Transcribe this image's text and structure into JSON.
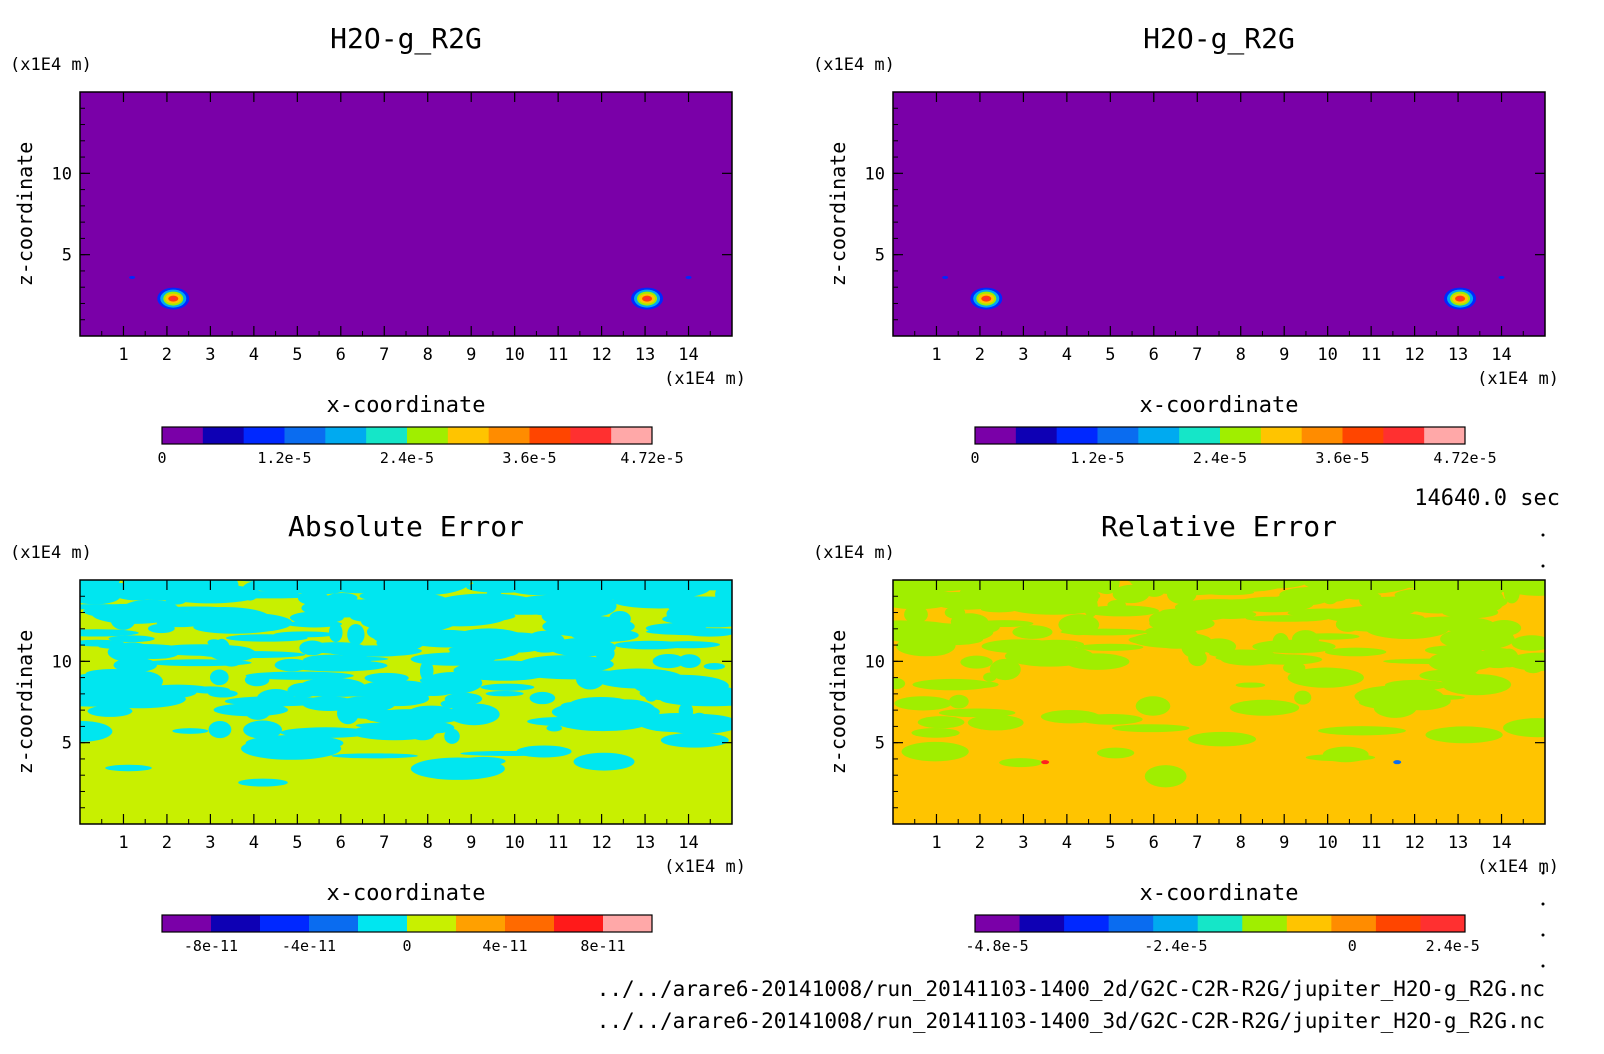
{
  "panels": [
    {
      "title": "H2O-g_R2G",
      "type": "heatmap",
      "kind": "field",
      "xlabel": "x-coordinate",
      "ylabel": "z-coordinate",
      "x_unit": "(x1E4 m)",
      "y_unit": "(x1E4 m)",
      "x_ticks": [
        "1",
        "2",
        "3",
        "4",
        "5",
        "6",
        "7",
        "8",
        "9",
        "10",
        "11",
        "12",
        "13",
        "14"
      ],
      "y_ticks": [
        "5",
        "10"
      ],
      "background_color": "#7a00a8",
      "colorbar": {
        "colors": [
          "#7a00a8",
          "#0e00b4",
          "#0028ff",
          "#0a6cf0",
          "#00aaf0",
          "#15e6c8",
          "#a0ee00",
          "#ffc400",
          "#ff8c00",
          "#ff4500",
          "#ff3030",
          "#ffa8a8"
        ],
        "labels": [
          "0",
          "1.2e-5",
          "2.4e-5",
          "3.6e-5",
          "4.72e-5"
        ],
        "label_positions": [
          0,
          0.25,
          0.5,
          0.75,
          1.0
        ]
      }
    },
    {
      "title": "H2O-g_R2G",
      "type": "heatmap",
      "kind": "field",
      "xlabel": "x-coordinate",
      "ylabel": "z-coordinate",
      "x_unit": "(x1E4 m)",
      "y_unit": "(x1E4 m)",
      "x_ticks": [
        "1",
        "2",
        "3",
        "4",
        "5",
        "6",
        "7",
        "8",
        "9",
        "10",
        "11",
        "12",
        "13",
        "14"
      ],
      "y_ticks": [
        "5",
        "10"
      ],
      "background_color": "#7a00a8",
      "colorbar": {
        "colors": [
          "#7a00a8",
          "#0e00b4",
          "#0028ff",
          "#0a6cf0",
          "#00aaf0",
          "#15e6c8",
          "#a0ee00",
          "#ffc400",
          "#ff8c00",
          "#ff4500",
          "#ff3030",
          "#ffa8a8"
        ],
        "labels": [
          "0",
          "1.2e-5",
          "2.4e-5",
          "3.6e-5",
          "4.72e-5"
        ],
        "label_positions": [
          0,
          0.25,
          0.5,
          0.75,
          1.0
        ]
      }
    },
    {
      "title": "Absolute Error",
      "type": "heatmap",
      "kind": "abs",
      "xlabel": "x-coordinate",
      "ylabel": "z-coordinate",
      "x_unit": "(x1E4 m)",
      "y_unit": "(x1E4 m)",
      "x_ticks": [
        "1",
        "2",
        "3",
        "4",
        "5",
        "6",
        "7",
        "8",
        "9",
        "10",
        "11",
        "12",
        "13",
        "14"
      ],
      "y_ticks": [
        "5",
        "10"
      ],
      "background_color": "#c8f000",
      "blob_color": "#00e6f0",
      "colorbar": {
        "colors": [
          "#7a00a8",
          "#0e00b4",
          "#0028ff",
          "#0a6cf0",
          "#00e6f0",
          "#c8f000",
          "#ffa000",
          "#ff6a00",
          "#ff1a1a",
          "#ffa8a8"
        ],
        "labels": [
          "-8e-11",
          "-4e-11",
          "0",
          "4e-11",
          "8e-11"
        ],
        "label_positions": [
          0.1,
          0.3,
          0.5,
          0.7,
          0.9
        ]
      }
    },
    {
      "title": "Relative Error",
      "type": "heatmap",
      "kind": "rel",
      "xlabel": "x-coordinate",
      "ylabel": "z-coordinate",
      "x_unit": "(x1E4 m)",
      "y_unit": "(x1E4 m)",
      "x_ticks": [
        "1",
        "2",
        "3",
        "4",
        "5",
        "6",
        "7",
        "8",
        "9",
        "10",
        "11",
        "12",
        "13",
        "14"
      ],
      "y_ticks": [
        "5",
        "10"
      ],
      "background_color": "#ffc400",
      "blob_color": "#a0ee00",
      "colorbar": {
        "colors": [
          "#7a00a8",
          "#0e00b4",
          "#0028ff",
          "#0a6cf0",
          "#00aaf0",
          "#15e6c8",
          "#a0ee00",
          "#ffc400",
          "#ff8c00",
          "#ff4500",
          "#ff3030"
        ],
        "labels": [
          "-4.8e-5",
          "-2.4e-5",
          "0",
          "2.4e-5"
        ],
        "label_positions": [
          0.045,
          0.41,
          0.77,
          0.975
        ]
      }
    }
  ],
  "time_label": "14640.0 sec",
  "file_paths": [
    "../../arare6-20141008/run_20141103-1400_2d/G2C-C2R-R2G/jupiter_H2O-g_R2G.nc",
    "../../arare6-20141008/run_20141103-1400_3d/G2C-C2R-R2G/jupiter_H2O-g_R2G.nc"
  ]
}
